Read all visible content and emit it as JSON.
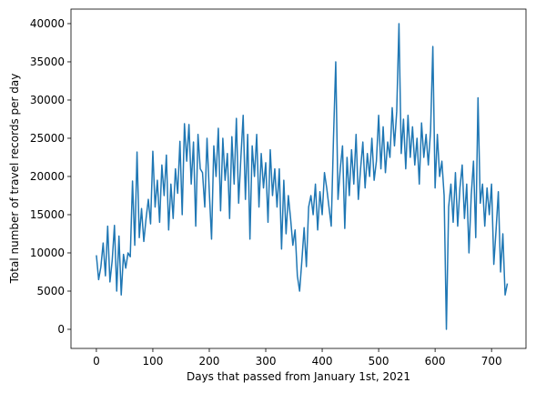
{
  "chart_data": {
    "type": "line",
    "xlabel": "Days that passed from January 1st, 2021",
    "ylabel": "Total number of travel records per day",
    "x": [
      0,
      4,
      8,
      12,
      16,
      20,
      24,
      28,
      32,
      36,
      40,
      44,
      48,
      52,
      56,
      60,
      64,
      68,
      72,
      76,
      80,
      84,
      88,
      92,
      96,
      100,
      104,
      108,
      112,
      116,
      120,
      124,
      128,
      132,
      136,
      140,
      144,
      148,
      152,
      156,
      160,
      164,
      168,
      172,
      176,
      180,
      184,
      188,
      192,
      196,
      200,
      204,
      208,
      212,
      216,
      220,
      224,
      228,
      232,
      236,
      240,
      244,
      248,
      252,
      256,
      260,
      264,
      268,
      272,
      276,
      280,
      284,
      288,
      292,
      296,
      300,
      304,
      308,
      312,
      316,
      320,
      324,
      328,
      332,
      336,
      340,
      344,
      348,
      352,
      356,
      360,
      364,
      368,
      372,
      376,
      380,
      384,
      388,
      392,
      396,
      400,
      404,
      408,
      412,
      416,
      420,
      424,
      428,
      432,
      436,
      440,
      444,
      448,
      452,
      456,
      460,
      464,
      468,
      472,
      476,
      480,
      484,
      488,
      492,
      496,
      500,
      504,
      508,
      512,
      516,
      520,
      524,
      528,
      532,
      536,
      540,
      544,
      548,
      552,
      556,
      560,
      564,
      568,
      572,
      576,
      580,
      584,
      588,
      592,
      596,
      600,
      604,
      608,
      612,
      616,
      620,
      624,
      628,
      632,
      636,
      640,
      644,
      648,
      652,
      656,
      660,
      664,
      668,
      672,
      676,
      680,
      684,
      688,
      692,
      696,
      700,
      704,
      708,
      712,
      716,
      720,
      724,
      728
    ],
    "series": [
      {
        "name": "records",
        "color": "#1f77b4",
        "values": [
          9700,
          6500,
          8200,
          11300,
          7000,
          13500,
          6200,
          9000,
          13600,
          5000,
          12200,
          4500,
          9800,
          8000,
          10000,
          9500,
          19400,
          11000,
          23200,
          12000,
          15800,
          11500,
          14500,
          17000,
          13800,
          23300,
          16000,
          19500,
          14000,
          21500,
          17500,
          22800,
          13000,
          19000,
          14500,
          21000,
          17800,
          24600,
          15000,
          26900,
          22000,
          26800,
          19000,
          24500,
          13500,
          25500,
          21000,
          20500,
          16000,
          25000,
          18000,
          11800,
          24000,
          20000,
          26300,
          15500,
          25000,
          19500,
          23000,
          14500,
          25200,
          19000,
          27600,
          16500,
          22500,
          28000,
          17000,
          25500,
          11800,
          24000,
          20000,
          25500,
          16000,
          23000,
          18500,
          21800,
          14000,
          23500,
          17500,
          21000,
          16000,
          21000,
          10500,
          19500,
          12500,
          17500,
          14500,
          11000,
          13000,
          7000,
          5000,
          9000,
          13300,
          8200,
          16000,
          17500,
          15000,
          19000,
          13000,
          18000,
          15000,
          20500,
          18500,
          16000,
          13500,
          25000,
          35000,
          17000,
          21000,
          24000,
          13200,
          22500,
          17500,
          23500,
          19000,
          25500,
          17000,
          21000,
          24500,
          18500,
          23000,
          20000,
          25000,
          19500,
          22000,
          28000,
          21000,
          26500,
          20500,
          24500,
          22500,
          29000,
          24000,
          28500,
          40000,
          23000,
          27500,
          21000,
          28000,
          22500,
          26500,
          21500,
          25000,
          19000,
          27000,
          22500,
          25500,
          21500,
          26000,
          37000,
          18500,
          25500,
          20000,
          22000,
          17500,
          0,
          16000,
          19000,
          14000,
          20500,
          13500,
          18500,
          21500,
          14500,
          19000,
          10000,
          17500,
          22000,
          12000,
          30300,
          16500,
          19000,
          13500,
          18500,
          15000,
          19000,
          8500,
          13000,
          18000,
          7500,
          12500,
          4500,
          6000
        ]
      }
    ],
    "xlim": [
      -45,
      761
    ],
    "ylim": [
      -2500,
      41900
    ],
    "xticks": [
      0,
      100,
      200,
      300,
      400,
      500,
      600,
      700
    ],
    "yticks": [
      0,
      5000,
      10000,
      15000,
      20000,
      25000,
      30000,
      35000,
      40000
    ]
  }
}
